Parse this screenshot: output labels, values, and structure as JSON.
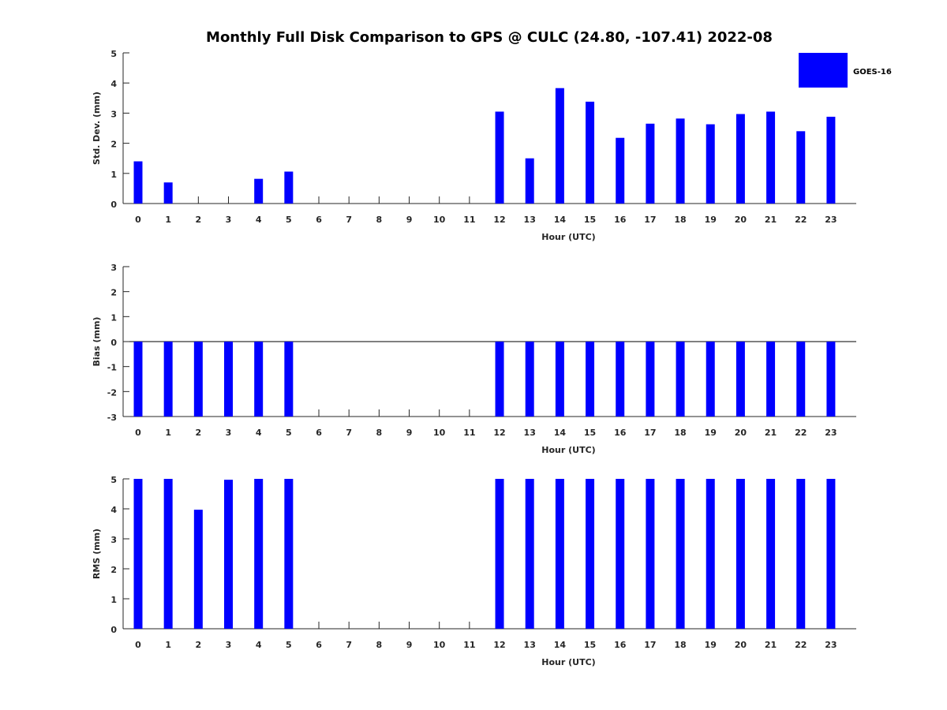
{
  "title": "Monthly Full Disk Comparison to GPS @ CULC (24.80, -107.41) 2022-08",
  "legend": {
    "label": "GOES-16",
    "color": "#0000ff",
    "position": "top-right"
  },
  "chart_data": [
    {
      "type": "bar",
      "name": "stddev",
      "categories": [
        "0",
        "1",
        "2",
        "3",
        "4",
        "5",
        "6",
        "7",
        "8",
        "9",
        "10",
        "11",
        "12",
        "13",
        "14",
        "15",
        "16",
        "17",
        "18",
        "19",
        "20",
        "21",
        "22",
        "23"
      ],
      "series": [
        {
          "name": "GOES-16",
          "values": [
            1.4,
            0.7,
            null,
            null,
            0.82,
            1.06,
            null,
            null,
            null,
            null,
            null,
            null,
            3.05,
            1.5,
            3.83,
            3.38,
            2.18,
            2.65,
            2.82,
            2.63,
            2.97,
            3.05,
            2.4,
            2.88
          ]
        }
      ],
      "xlabel": "Hour (UTC)",
      "ylabel": "Std. Dev. (mm)",
      "ylim": [
        0,
        5
      ],
      "yticks": [
        "0",
        "1",
        "2",
        "3",
        "4",
        "5"
      ],
      "grid": false
    },
    {
      "type": "bar",
      "name": "bias",
      "categories": [
        "0",
        "1",
        "2",
        "3",
        "4",
        "5",
        "6",
        "7",
        "8",
        "9",
        "10",
        "11",
        "12",
        "13",
        "14",
        "15",
        "16",
        "17",
        "18",
        "19",
        "20",
        "21",
        "22",
        "23"
      ],
      "series": [
        {
          "name": "GOES-16",
          "values": [
            -3,
            -3,
            -3,
            -3,
            -3,
            -3,
            null,
            null,
            null,
            null,
            null,
            null,
            -3,
            -3,
            -3,
            -3,
            -3,
            -3,
            -3,
            -3,
            -3,
            -3,
            -3,
            -3
          ]
        }
      ],
      "xlabel": "Hour (UTC)",
      "ylabel": "Bias (mm)",
      "ylim": [
        -3,
        3
      ],
      "yticks": [
        "-3",
        "-2",
        "-1",
        "0",
        "1",
        "2",
        "3"
      ],
      "grid": false
    },
    {
      "type": "bar",
      "name": "rms",
      "categories": [
        "0",
        "1",
        "2",
        "3",
        "4",
        "5",
        "6",
        "7",
        "8",
        "9",
        "10",
        "11",
        "12",
        "13",
        "14",
        "15",
        "16",
        "17",
        "18",
        "19",
        "20",
        "21",
        "22",
        "23"
      ],
      "series": [
        {
          "name": "GOES-16",
          "values": [
            5,
            5,
            3.97,
            4.97,
            5,
            5,
            null,
            null,
            null,
            null,
            null,
            null,
            5,
            5,
            5,
            5,
            5,
            5,
            5,
            5,
            5,
            5,
            5,
            5
          ]
        }
      ],
      "xlabel": "Hour (UTC)",
      "ylabel": "RMS (mm)",
      "ylim": [
        0,
        5
      ],
      "yticks": [
        "0",
        "1",
        "2",
        "3",
        "4",
        "5"
      ],
      "grid": false
    }
  ]
}
